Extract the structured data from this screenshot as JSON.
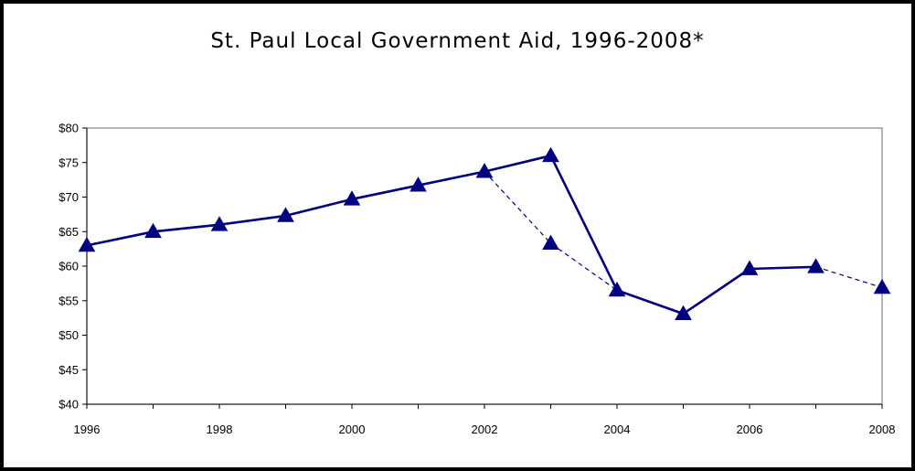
{
  "chart_data": {
    "type": "line",
    "title": "St. Paul Local Government Aid, 1996-2008*",
    "xlabel": "",
    "ylabel": "",
    "xlim": [
      1996,
      2008
    ],
    "ylim": [
      40,
      80
    ],
    "x_ticks": [
      1996,
      1998,
      2000,
      2002,
      2004,
      2006,
      2008
    ],
    "y_ticks": [
      40,
      45,
      50,
      55,
      60,
      65,
      70,
      75,
      80
    ],
    "y_tick_labels": [
      "$40",
      "$45",
      "$50",
      "$55",
      "$60",
      "$65",
      "$70",
      "$75",
      "$80"
    ],
    "x_tick_labels": [
      "1996",
      "1998",
      "2000",
      "2002",
      "2004",
      "2006",
      "2008"
    ],
    "grid": false,
    "legend": "none",
    "series": [
      {
        "style": "solid",
        "color": "#000080",
        "points": [
          [
            1996,
            63.0
          ],
          [
            1997,
            65.0
          ],
          [
            1998,
            66.0
          ],
          [
            1999,
            67.3
          ],
          [
            2000,
            69.7
          ],
          [
            2001,
            71.7
          ],
          [
            2002,
            73.7
          ],
          [
            2003,
            76.0
          ],
          [
            2004,
            56.5
          ],
          [
            2005,
            53.1
          ],
          [
            2006,
            59.6
          ],
          [
            2007,
            59.9
          ]
        ]
      },
      {
        "style": "dashed",
        "color": "#000080",
        "points": [
          [
            2002,
            73.7
          ],
          [
            2003,
            63.3
          ],
          [
            2004,
            56.5
          ]
        ]
      },
      {
        "style": "dashed",
        "color": "#000080",
        "points": [
          [
            2007,
            59.9
          ],
          [
            2008,
            56.9
          ]
        ]
      }
    ]
  }
}
